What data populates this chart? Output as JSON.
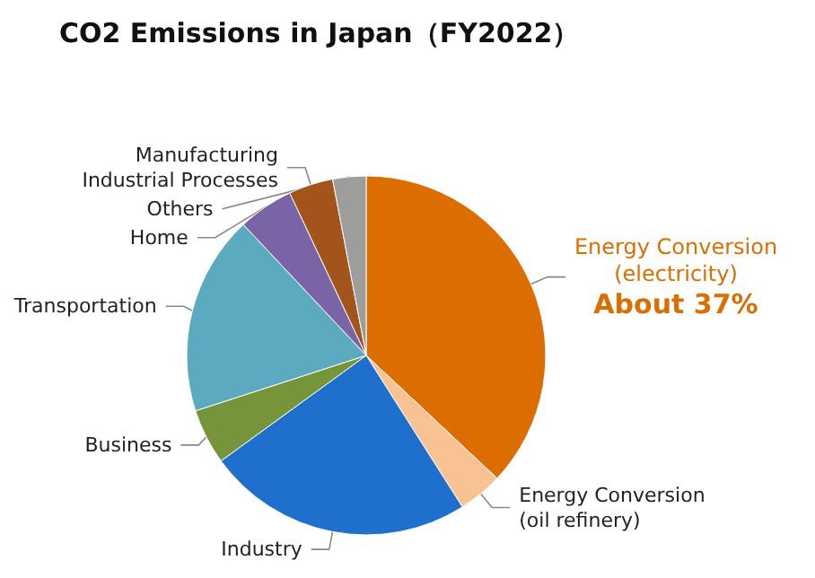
{
  "chart_data": {
    "type": "pie",
    "title": "CO2 Emissions in Japan（FY2022）",
    "categories": [
      "Energy Conversion\n(electricity)",
      "Energy Conversion\n(oil refinery)",
      "Industry",
      "Business",
      "Transportation",
      "Home",
      "Manufacturing\nIndustrial Processes",
      "Others"
    ],
    "values": [
      37,
      4,
      24,
      5,
      18,
      5,
      4,
      3
    ],
    "value_labels": [
      "About 37%",
      null,
      null,
      null,
      null,
      null,
      null,
      null
    ],
    "colors": [
      "#dc6d00",
      "#f8c293",
      "#1f70cc",
      "#76953b",
      "#5baac0",
      "#7b64a6",
      "#a2541a",
      "#9d9d9d"
    ],
    "legend": false
  }
}
